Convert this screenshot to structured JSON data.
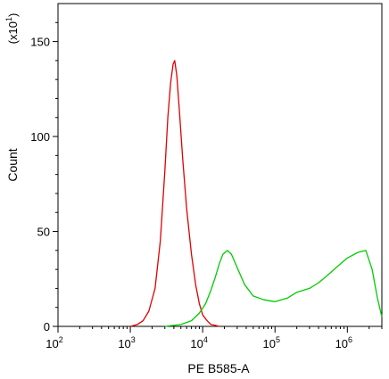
{
  "chart_data": {
    "type": "line",
    "title": "",
    "xlabel": "PE B585-A",
    "ylabel": "Count",
    "y_multiplier_label": "(x10",
    "y_multiplier_exponent": "1",
    "y_multiplier_close": ")",
    "x_scale": "log",
    "xlim": [
      100,
      3000000
    ],
    "ylim": [
      0,
      170
    ],
    "x_ticks": [
      {
        "value": 100,
        "base": "10",
        "exp": "2"
      },
      {
        "value": 1000,
        "base": "10",
        "exp": "3"
      },
      {
        "value": 10000,
        "base": "10",
        "exp": "4"
      },
      {
        "value": 100000,
        "base": "10",
        "exp": "5"
      },
      {
        "value": 1000000,
        "base": "10",
        "exp": "6"
      }
    ],
    "y_ticks": [
      {
        "value": 0,
        "label": "0"
      },
      {
        "value": 50,
        "label": "50"
      },
      {
        "value": 100,
        "label": "100"
      },
      {
        "value": 150,
        "label": "150"
      }
    ],
    "grid": false,
    "legend": "none",
    "series": [
      {
        "color": "#e00000",
        "x": [
          1000,
          1250,
          1500,
          1800,
          2200,
          2600,
          3000,
          3300,
          3600,
          3900,
          4100,
          4400,
          4800,
          5300,
          6000,
          7000,
          8000,
          9000,
          10000,
          11500,
          13000,
          15000,
          17000
        ],
        "y": [
          0,
          1,
          3,
          8,
          20,
          45,
          82,
          110,
          128,
          138,
          140,
          132,
          112,
          88,
          62,
          38,
          22,
          12,
          6,
          3,
          1,
          0.5,
          0
        ]
      },
      {
        "color": "#00cc00",
        "x": [
          3000,
          5000,
          7000,
          9000,
          11000,
          13000,
          15000,
          17000,
          19000,
          22000,
          25000,
          30000,
          38000,
          50000,
          70000,
          100000,
          150000,
          200000,
          300000,
          400000,
          500000,
          700000,
          1000000,
          1400000,
          1800000,
          2200000,
          2600000,
          3000000
        ],
        "y": [
          0,
          1,
          3,
          7,
          12,
          19,
          26,
          33,
          38,
          40,
          38,
          31,
          22,
          16,
          14,
          13,
          15,
          18,
          20,
          23,
          26,
          31,
          36,
          39,
          40,
          30,
          15,
          5
        ]
      }
    ]
  }
}
